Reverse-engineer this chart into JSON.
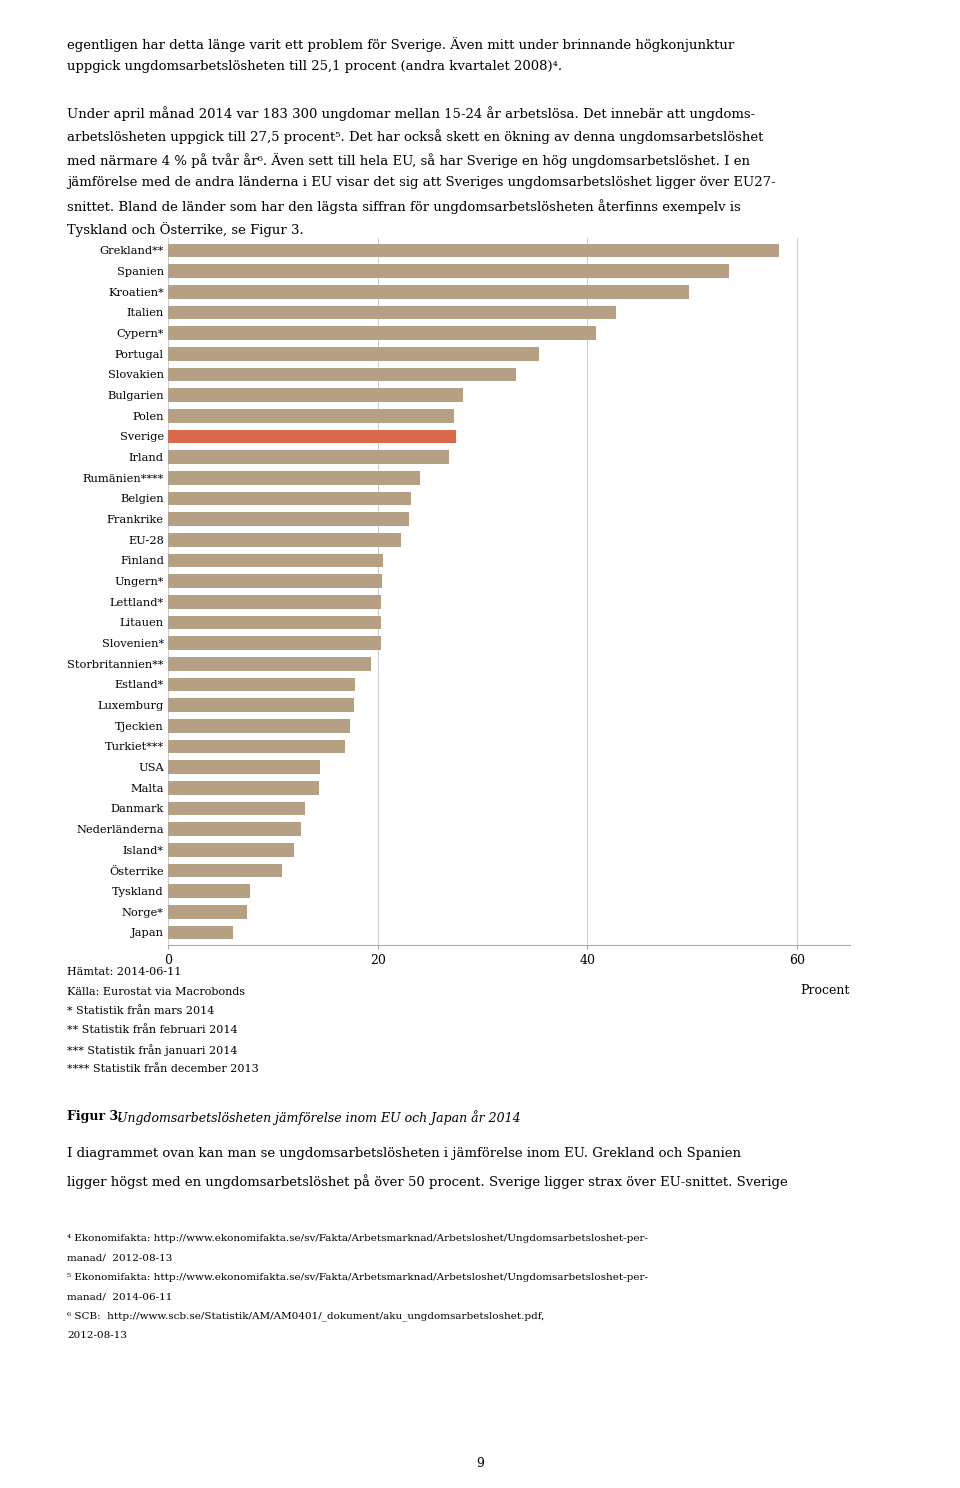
{
  "countries": [
    "Grekland**",
    "Spanien",
    "Kroatien*",
    "Italien",
    "Cypern*",
    "Portugal",
    "Slovakien",
    "Bulgarien",
    "Polen",
    "Sverige",
    "Irland",
    "Rumänien****",
    "Belgien",
    "Frankrike",
    "EU-28",
    "Finland",
    "Ungern*",
    "Lettland*",
    "Litauen",
    "Slovenien*",
    "Storbritannien**",
    "Estland*",
    "Luxemburg",
    "Tjeckien",
    "Turkiet***",
    "USA",
    "Malta",
    "Danmark",
    "Nederländerna",
    "Island*",
    "Österrike",
    "Tyskland",
    "Norge*",
    "Japan"
  ],
  "values": [
    58.3,
    53.5,
    49.7,
    42.7,
    40.8,
    35.4,
    33.2,
    28.1,
    27.3,
    27.5,
    26.8,
    24.0,
    23.2,
    23.0,
    22.2,
    20.5,
    20.4,
    20.3,
    20.3,
    20.3,
    19.4,
    17.8,
    17.7,
    17.4,
    16.9,
    14.5,
    14.4,
    13.1,
    12.7,
    12.0,
    10.9,
    7.8,
    7.5,
    6.2
  ],
  "highlight_country": "Sverige",
  "highlight_color": "#d9694a",
  "default_color": "#b5a084",
  "bar_height": 0.65,
  "xlim": [
    0,
    65
  ],
  "xticks": [
    0,
    20,
    40,
    60
  ],
  "grid_color": "#cccccc",
  "top_para1": "egentligen har detta länge varit ett problem för Sverige. Även mitt under brinnande högkonjunktur",
  "top_para1b": "uppgick ungdomsarbetslösheten till 25,1 procent (andra kvartalet 2008)⁴.",
  "top_para2": "Under april månad 2014 var 183 300 ungdomar mellan 15-24 år arbetslösa. Det innebär att ungdoms-",
  "top_para2b": "arbetslösheten uppgick till 27,5 procent⁵. Det har också skett en ökning av denna ungdomsarbetslöshet",
  "top_para2c": "med närmare 4 % på tvår år⁶. Även sett till hela EU, så har Sverige en hög ungdomsarbetslöshet. I en",
  "top_para2d": "jämförelse med de andra länderna i EU visar det sig att Sveriges ungdomsarbetslöshet ligger över EU27-",
  "top_para2e": "snittet. Bland de länder som har den lägsta siffran för ungdomsarbetslösheten återfinns exempelv is",
  "top_para2f": "Tyskland och Österrike, se Figur 3.",
  "footnote_lines": [
    "Hämtat: 2014-06-11",
    "Källa: Eurostat via Macrobonds",
    "* Statistik från mars 2014",
    "** Statistik från februari 2014",
    "*** Statistik från januari 2014",
    "**** Statistik från december 2013"
  ],
  "fig_caption_bold": "Figur 3.",
  "fig_caption_italic": "Ungdomsarbetslösheten jämförelse inom EU och Japan år 2014",
  "body_text_lines": [
    "I diagrammet ovan kan man se ungdomsarbetslösheten i jämförelse inom EU. Grekland och Spanien",
    "ligger högst med en ungdomsarbetslöshet på över 50 procent. Sverige ligger strax över EU-snittet. Sverige"
  ],
  "footnotes_bottom": [
    "⁴ Ekonomifakta: http://www.ekonomifakta.se/sv/Fakta/Arbetsmarknad/Arbetsloshet/Ungdomsarbetsloshet-per-",
    "manad/  2012-08-13",
    "⁵ Ekonomifakta: http://www.ekonomifakta.se/sv/Fakta/Arbetsmarknad/Arbetsloshet/Ungdomsarbetsloshet-per-",
    "manad/  2014-06-11",
    "⁶ SCB:  http://www.scb.se/Statistik/AM/AM0401/_dokument/aku_ungdomsarbetsloshet.pdf,",
    "2012-08-13"
  ],
  "page_number": "9"
}
